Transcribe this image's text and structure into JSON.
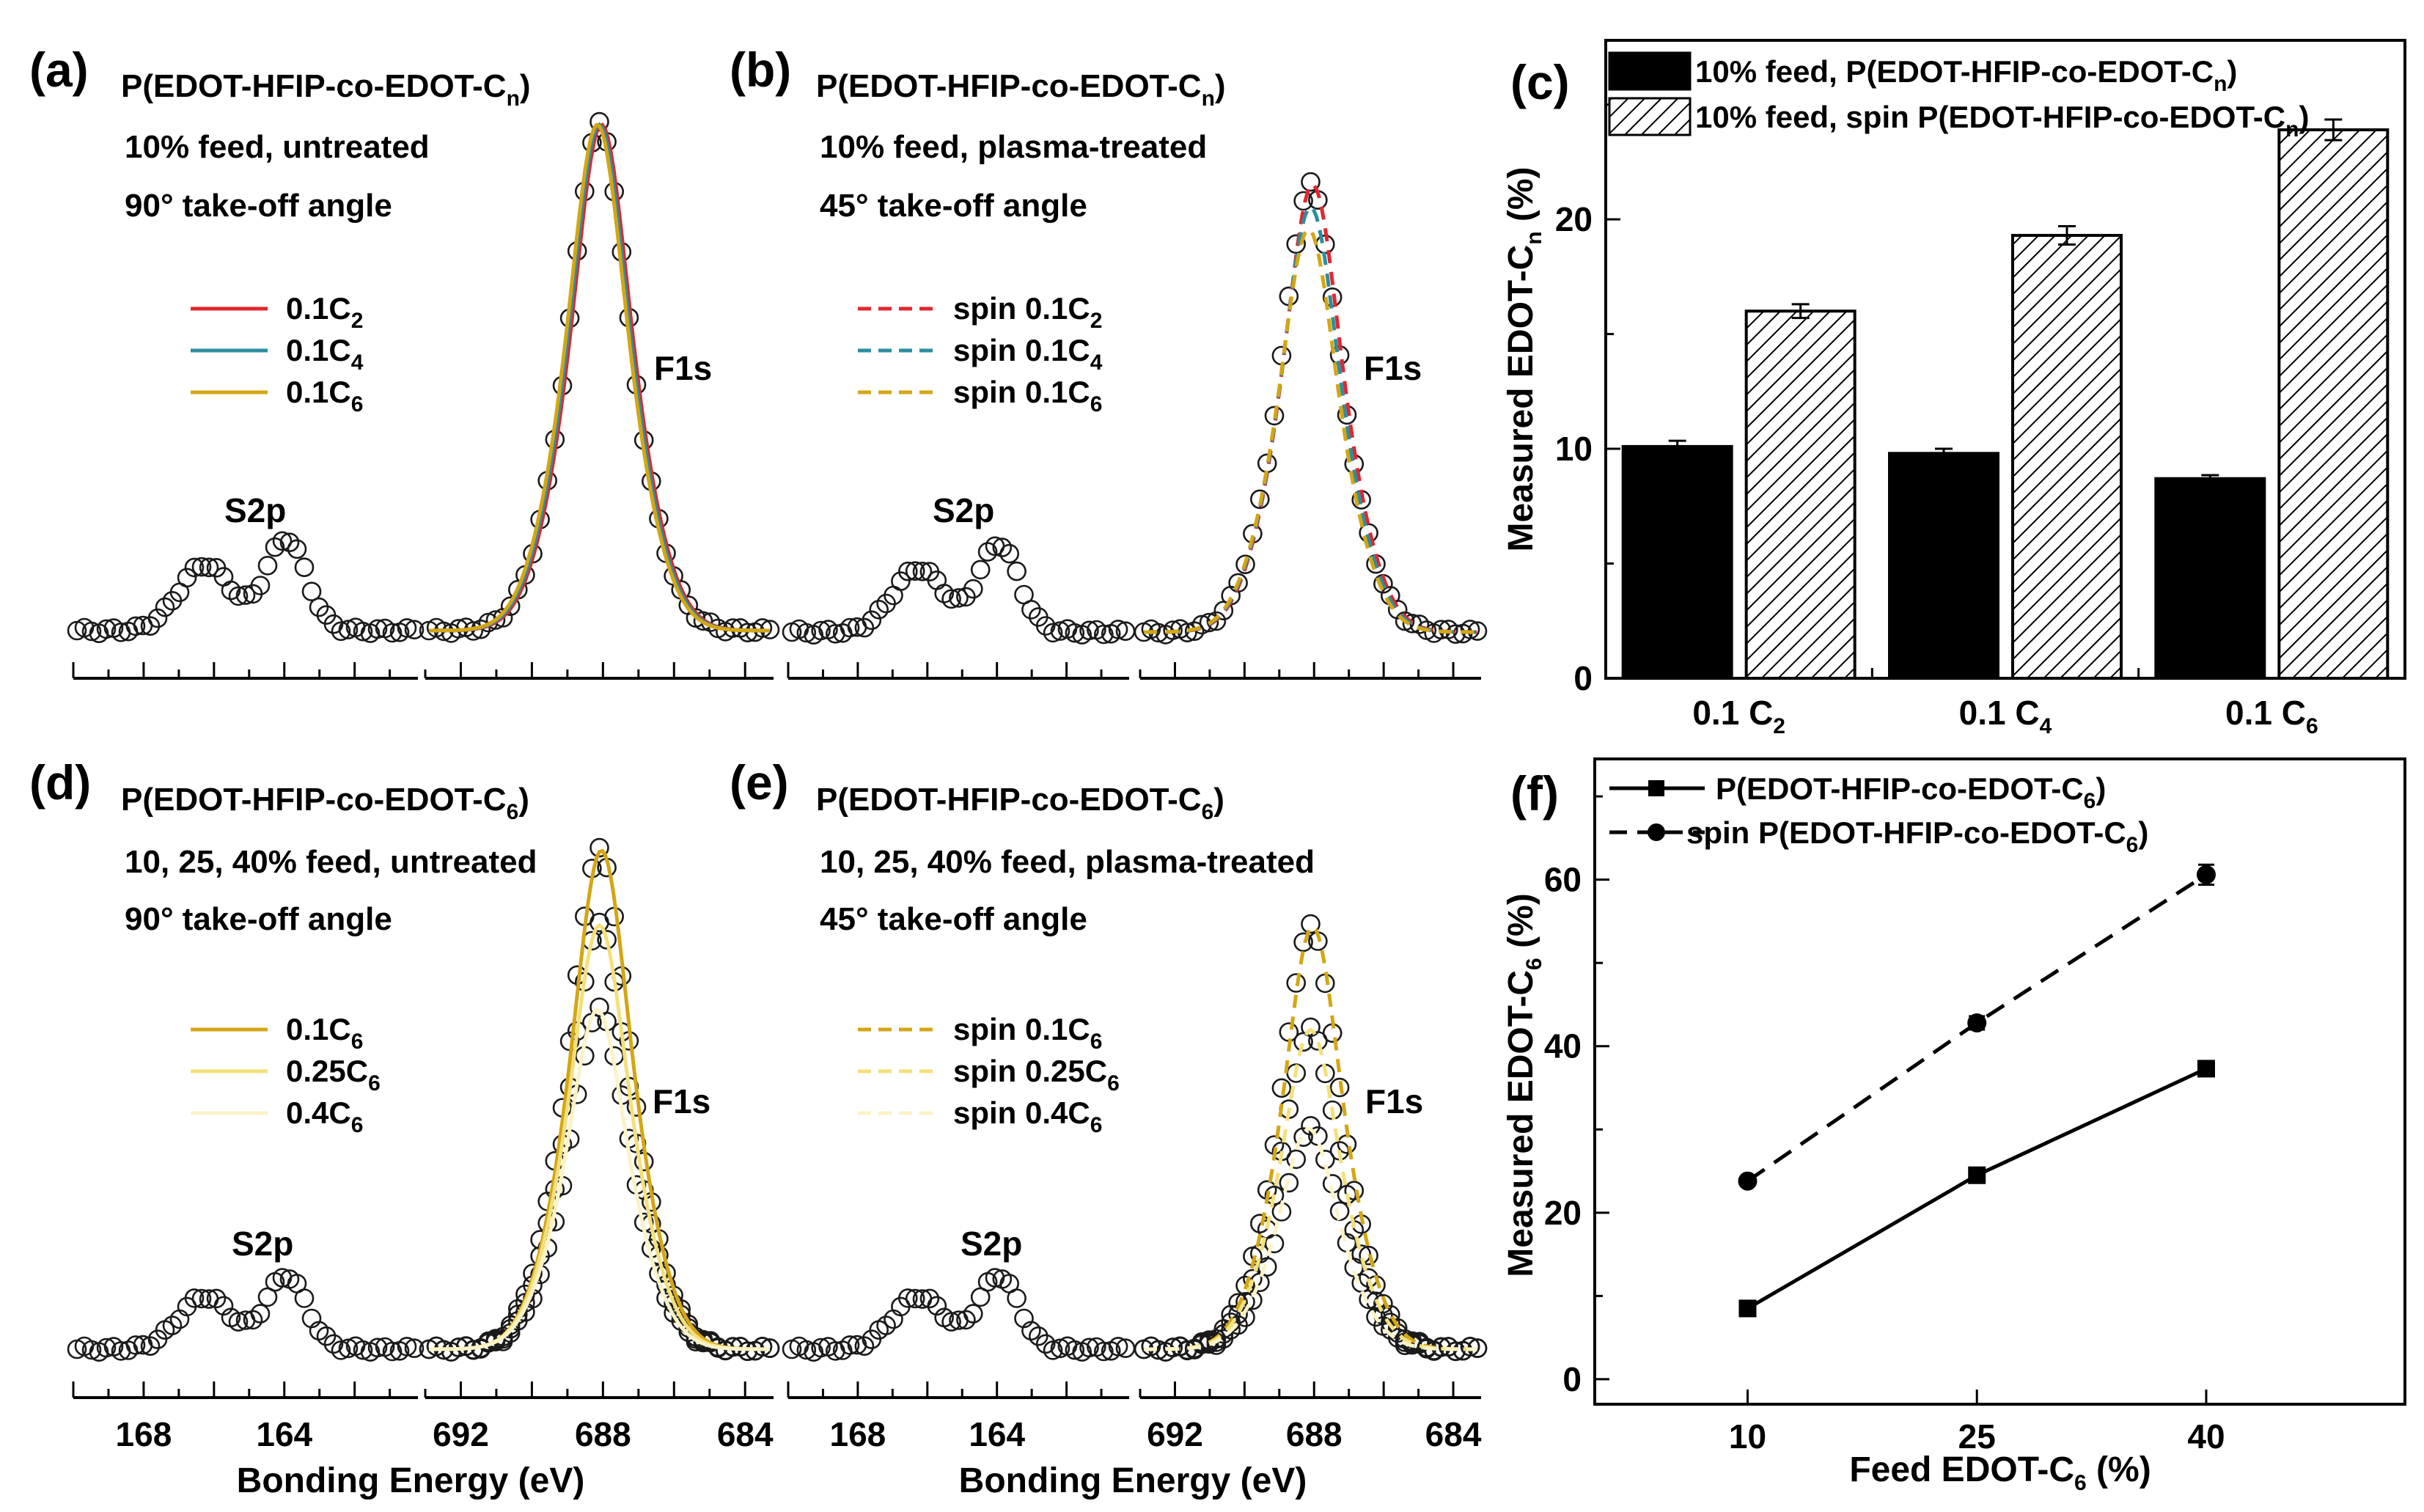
{
  "colors": {
    "c2": "#e3262d",
    "c4": "#2b8ea0",
    "c6": "#d4a614",
    "c6_25": "#f4e07a",
    "c6_40": "#fbf3c6",
    "marker": "#1a1a1a",
    "bar_solid": "#000000"
  },
  "xps": {
    "xlabel": "Bonding Energy (eV)",
    "s2p_ticks": [
      "168",
      "164"
    ],
    "f1s_ticks": [
      "692",
      "688",
      "684"
    ],
    "s2p_label": "S2p",
    "f1s_label": "F1s",
    "panels": {
      "a": {
        "letter": "(a)",
        "title": "P(EDOT-HFIP-co-EDOT-C",
        "title_sub": "n",
        "title_end": ")",
        "line2": "10% feed, untreated",
        "line3": "90° take-off angle",
        "style": "solid",
        "legend": [
          {
            "text": "0.1C",
            "sub": "2",
            "color": "#e3262d",
            "amp": 1.0
          },
          {
            "text": "0.1C",
            "sub": "4",
            "color": "#2b8ea0",
            "amp": 1.0
          },
          {
            "text": "0.1C",
            "sub": "6",
            "color": "#d4a614",
            "amp": 1.0
          }
        ]
      },
      "b": {
        "letter": "(b)",
        "title": "P(EDOT-HFIP-co-EDOT-C",
        "title_sub": "n",
        "title_end": ")",
        "line2": "10% feed, plasma-treated",
        "line3": "45° take-off angle",
        "style": "dashed",
        "legend": [
          {
            "text": "spin 0.1C",
            "sub": "2",
            "color": "#e3262d",
            "amp": 1.0
          },
          {
            "text": "spin 0.1C",
            "sub": "4",
            "color": "#2b8ea0",
            "amp": 0.95
          },
          {
            "text": "spin 0.1C",
            "sub": "6",
            "color": "#d4a614",
            "amp": 0.9
          }
        ]
      },
      "d": {
        "letter": "(d)",
        "title": "P(EDOT-HFIP-co-EDOT-C",
        "title_sub": "6",
        "title_end": ")",
        "line2": "10, 25, 40% feed, untreated",
        "line3": "90° take-off angle",
        "style": "solid",
        "legend": [
          {
            "text": "0.1C",
            "sub": "6",
            "color": "#d4a614",
            "amp": 1.0
          },
          {
            "text": "0.25C",
            "sub": "6",
            "color": "#f4e07a",
            "amp": 0.85
          },
          {
            "text": "0.4C",
            "sub": "6",
            "color": "#fbf3c6",
            "amp": 0.68
          }
        ]
      },
      "e": {
        "letter": "(e)",
        "title": "P(EDOT-HFIP-co-EDOT-C",
        "title_sub": "6",
        "title_end": ")",
        "line2": "10, 25, 40% feed, plasma-treated",
        "line3": "45° take-off angle",
        "style": "dashed",
        "legend": [
          {
            "text": "spin 0.1C",
            "sub": "6",
            "color": "#d4a614",
            "amp": 0.9
          },
          {
            "text": "spin 0.25C",
            "sub": "6",
            "color": "#f4e07a",
            "amp": 0.68
          },
          {
            "text": "spin 0.4C",
            "sub": "6",
            "color": "#fbf3c6",
            "amp": 0.47
          }
        ]
      }
    }
  },
  "chart_data": [
    {
      "id": "c",
      "type": "bar",
      "letter": "(c)",
      "categories": [
        "0.1 C",
        "0.1 C",
        "0.1 C"
      ],
      "category_subs": [
        "2",
        "4",
        "6"
      ],
      "series": [
        {
          "name": "10% feed, P(EDOT-HFIP-co-EDOT-C",
          "name_sub": "n",
          "name_end": ")",
          "pattern": "solid",
          "values": [
            10.1,
            9.8,
            8.7
          ],
          "errors": [
            0.25,
            0.2,
            0.15
          ]
        },
        {
          "name": "10% feed, spin P(EDOT-HFIP-co-EDOT-C",
          "name_sub": "n",
          "name_end": ")",
          "pattern": "hatched",
          "values": [
            16.0,
            19.3,
            23.9
          ],
          "errors": [
            0.3,
            0.4,
            0.45
          ]
        }
      ],
      "ylabel": "Measured EDOT-C",
      "ylabel_sub": "n",
      "ylabel_end": " (%)",
      "ylim": [
        0,
        27.8
      ],
      "yticks": [
        0,
        10,
        20
      ],
      "grid": false,
      "legend": "top-left"
    },
    {
      "id": "f",
      "type": "line",
      "letter": "(f)",
      "x": [
        10,
        25,
        40
      ],
      "xticks": [
        "10",
        "25",
        "40"
      ],
      "series": [
        {
          "name": "P(EDOT-HFIP-co-EDOT-C",
          "name_sub": "6",
          "name_end": ")",
          "style": "solid",
          "marker": "square",
          "values": [
            8.5,
            24.5,
            37.3
          ],
          "errors": [
            0.4,
            0.5,
            0.8
          ]
        },
        {
          "name": "spin P(EDOT-HFIP-co-EDOT-C",
          "name_sub": "6",
          "name_end": ")",
          "style": "dashed",
          "marker": "circle",
          "values": [
            23.8,
            42.8,
            60.6
          ],
          "errors": [
            0.5,
            0.8,
            1.2
          ]
        }
      ],
      "xlabel": "Feed EDOT-C",
      "xlabel_sub": "6",
      "xlabel_end": " (%)",
      "ylabel": "Measured EDOT-C",
      "ylabel_sub": "6",
      "ylabel_end": " (%)",
      "xlim": [
        0,
        53
      ],
      "ylim": [
        -3,
        74.5
      ],
      "yticks": [
        0,
        20,
        40,
        60
      ],
      "grid": false,
      "legend": "top-left"
    }
  ]
}
